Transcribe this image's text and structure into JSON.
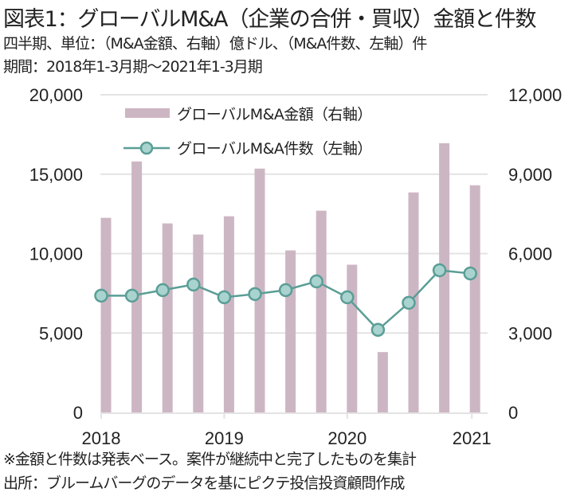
{
  "header": {
    "title": "図表1：グローバルM&A（企業の合併・買収）金額と件数",
    "subtitle_units": "四半期、単位：（M&A金額、右軸）億ドル、（M&A件数、左軸）件",
    "subtitle_period": "期間：2018年1-3月期～2021年1-3月期"
  },
  "footer": {
    "note": "※金額と件数は発表ベース。案件が継続中と完了したものを集計",
    "source": "出所：ブルームバーグのデータを基にピクテ投信投資顧問作成"
  },
  "colors": {
    "bar": "#cdb6c3",
    "line": "#5a9e96",
    "marker_fill": "#a9d3cf",
    "grid": "#e3e3e3"
  },
  "chart_data": {
    "type": "bar+line",
    "categories": [
      "2018 Q1",
      "2018 Q2",
      "2018 Q3",
      "2018 Q4",
      "2019 Q1",
      "2019 Q2",
      "2019 Q3",
      "2019 Q4",
      "2020 Q1",
      "2020 Q2",
      "2020 Q3",
      "2020 Q4",
      "2021 Q1"
    ],
    "x_tick_labels": [
      "2018",
      "2019",
      "2020",
      "2021"
    ],
    "x_tick_category_index": [
      0,
      4,
      8,
      12
    ],
    "left_axis": {
      "label": "件",
      "range": [
        0,
        20000
      ],
      "ticks": [
        "0",
        "5,000",
        "10,000",
        "15,000",
        "20,000"
      ],
      "tick_values": [
        0,
        5000,
        10000,
        15000,
        20000
      ]
    },
    "right_axis": {
      "label": "億ドル",
      "range": [
        0,
        12000
      ],
      "ticks": [
        "0",
        "3,000",
        "6,000",
        "9,000",
        "12,000"
      ],
      "tick_values": [
        0,
        3000,
        6000,
        9000,
        12000
      ]
    },
    "grid": true,
    "legend_position": "top-center",
    "series": [
      {
        "name": "グローバルM&A金額（右軸）",
        "type": "bar",
        "axis": "right",
        "values": [
          7350,
          9480,
          7140,
          6720,
          7410,
          9210,
          6120,
          7620,
          5580,
          2280,
          8310,
          10170,
          8580
        ]
      },
      {
        "name": "グローバルM&A件数（左軸）",
        "type": "line",
        "axis": "left",
        "values": [
          7350,
          7350,
          7700,
          8050,
          7250,
          7450,
          7700,
          8250,
          7250,
          5200,
          6900,
          8950,
          8750
        ]
      }
    ]
  }
}
